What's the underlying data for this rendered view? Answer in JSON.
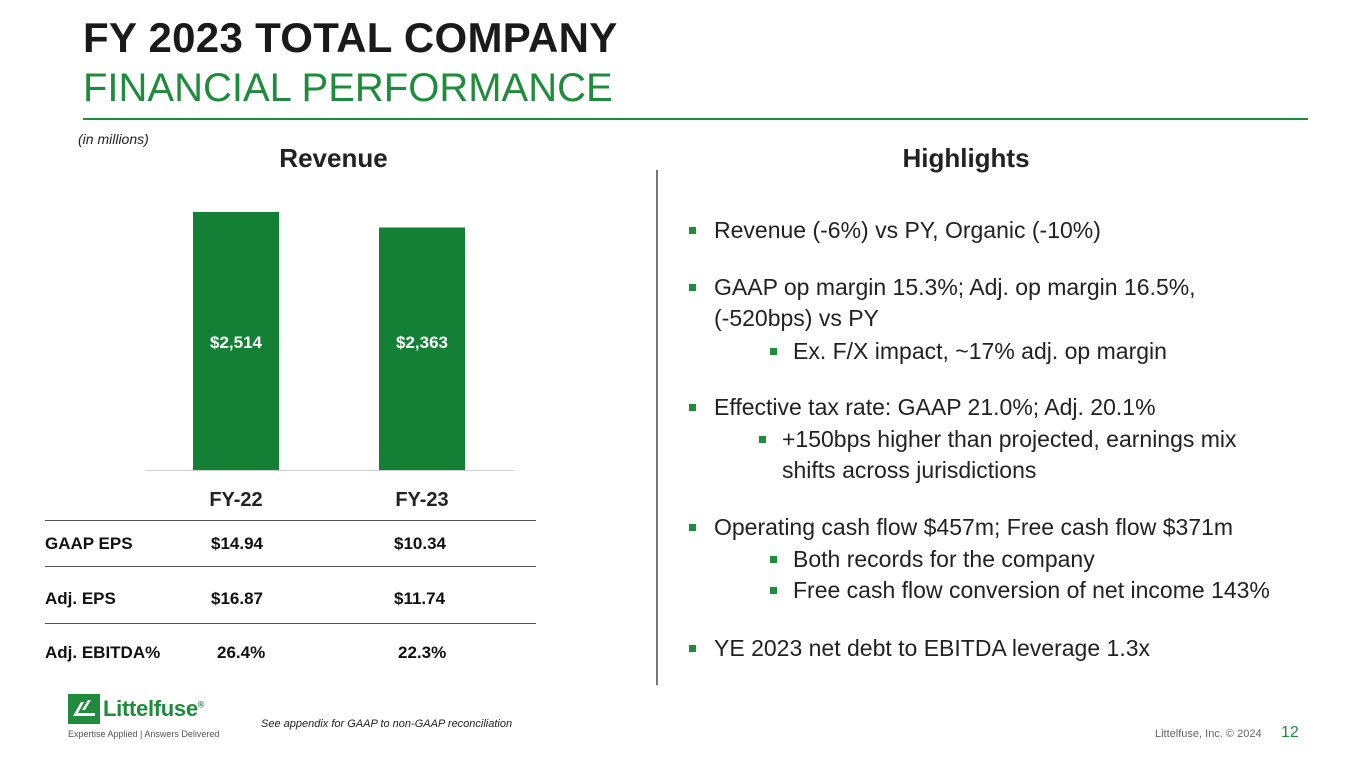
{
  "header": {
    "title": "FY 2023 TOTAL COMPANY",
    "subtitle": "FINANCIAL PERFORMANCE"
  },
  "units_note": "(in millions)",
  "chart_data": {
    "type": "bar",
    "title": "Revenue",
    "categories": [
      "FY-22",
      "FY-23"
    ],
    "values": [
      2514,
      2363
    ],
    "value_labels": [
      "$2,514",
      "$2,363"
    ],
    "xlabel": "",
    "ylabel": "",
    "ylim": [
      0,
      2514
    ],
    "grid": false,
    "color": "#138036"
  },
  "metrics": {
    "rows": [
      {
        "name": "GAAP EPS",
        "fy22": "$14.94",
        "fy23": "$10.34"
      },
      {
        "name": "Adj. EPS",
        "fy22": "$16.87",
        "fy23": "$11.74"
      },
      {
        "name": "Adj. EBITDA%",
        "fy22": "26.4%",
        "fy23": "22.3%"
      }
    ]
  },
  "highlights": {
    "title": "Highlights",
    "b1": "Revenue (-6%) vs PY, Organic (-10%)",
    "b2_line1": "GAAP op margin 15.3%; Adj. op margin 16.5%,",
    "b2_line2": "(-520bps) vs PY",
    "b2_sub1": "Ex. F/X impact, ~17% adj. op margin",
    "b3": "Effective tax rate: GAAP 21.0%; Adj. 20.1%",
    "b3_sub1_line1": "+150bps higher than projected, earnings mix",
    "b3_sub1_line2": "shifts across jurisdictions",
    "b4": "Operating cash flow $457m; Free cash flow $371m",
    "b4_sub1": "Both records for the company",
    "b4_sub2": "Free cash flow conversion of net income 143%",
    "b5": "YE 2023 net debt to EBITDA leverage 1.3x"
  },
  "footer": {
    "logo_text": "Littelfuse",
    "logo_mark": "®",
    "tagline": "Expertise Applied | Answers Delivered",
    "footnote": "See appendix for GAAP to non-GAAP reconciliation",
    "copyright": "Littelfuse, Inc. © 2024",
    "page_number": "12"
  },
  "colors": {
    "brand_green": "#1e8c3c",
    "bar_green": "#138036"
  }
}
